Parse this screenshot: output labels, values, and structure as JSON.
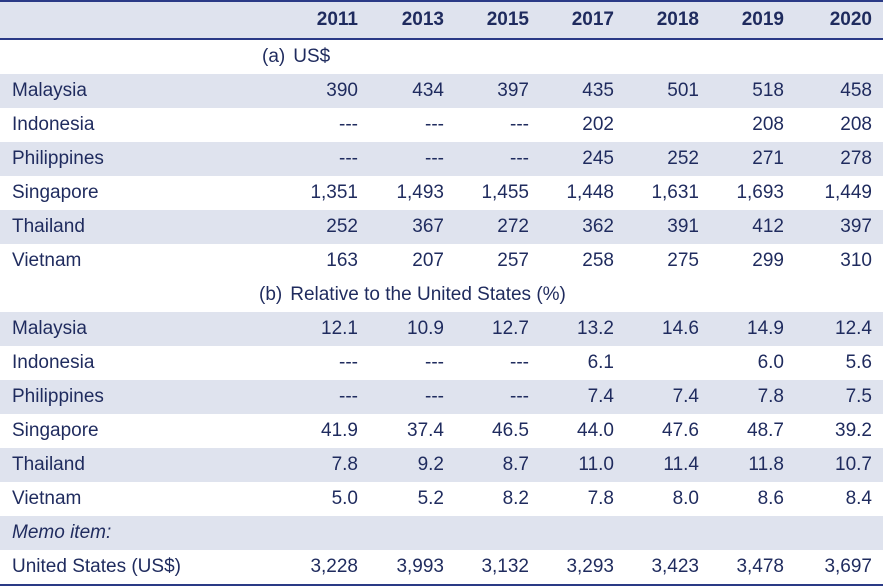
{
  "header": {
    "years": [
      "2011",
      "2013",
      "2015",
      "2017",
      "2018",
      "2019",
      "2020"
    ]
  },
  "section_a": {
    "tag": "(a)",
    "title": "US$",
    "rows": [
      {
        "country": "Malaysia",
        "values": [
          "390",
          "434",
          "397",
          "435",
          "501",
          "518",
          "458"
        ]
      },
      {
        "country": "Indonesia",
        "values": [
          "---",
          "---",
          "---",
          "202",
          "",
          "208",
          "208"
        ]
      },
      {
        "country": "Philippines",
        "values": [
          "---",
          "---",
          "---",
          "245",
          "252",
          "271",
          "278"
        ]
      },
      {
        "country": "Singapore",
        "values": [
          "1,351",
          "1,493",
          "1,455",
          "1,448",
          "1,631",
          "1,693",
          "1,449"
        ]
      },
      {
        "country": "Thailand",
        "values": [
          "252",
          "367",
          "272",
          "362",
          "391",
          "412",
          "397"
        ]
      },
      {
        "country": "Vietnam",
        "values": [
          "163",
          "207",
          "257",
          "258",
          "275",
          "299",
          "310"
        ]
      }
    ]
  },
  "section_b": {
    "tag": "(b)",
    "title": "Relative to the United States (%)",
    "rows": [
      {
        "country": "Malaysia",
        "values": [
          "12.1",
          "10.9",
          "12.7",
          "13.2",
          "14.6",
          "14.9",
          "12.4"
        ]
      },
      {
        "country": "Indonesia",
        "values": [
          "---",
          "---",
          "---",
          "6.1",
          "",
          "6.0",
          "5.6"
        ]
      },
      {
        "country": "Philippines",
        "values": [
          "---",
          "---",
          "---",
          "7.4",
          "7.4",
          "7.8",
          "7.5"
        ]
      },
      {
        "country": "Singapore",
        "values": [
          "41.9",
          "37.4",
          "46.5",
          "44.0",
          "47.6",
          "48.7",
          "39.2"
        ]
      },
      {
        "country": "Thailand",
        "values": [
          "7.8",
          "9.2",
          "8.7",
          "11.0",
          "11.4",
          "11.8",
          "10.7"
        ]
      },
      {
        "country": "Vietnam",
        "values": [
          "5.0",
          "5.2",
          "8.2",
          "7.8",
          "8.0",
          "8.6",
          "8.4"
        ]
      }
    ]
  },
  "memo": {
    "label": "Memo item:",
    "row": {
      "country": "United States (US$)",
      "values": [
        "3,228",
        "3,993",
        "3,132",
        "3,293",
        "3,423",
        "3,478",
        "3,697"
      ]
    }
  },
  "colors": {
    "text": "#1f2b5e",
    "rule": "#2a3a86",
    "shade": "#dfe3ee"
  }
}
